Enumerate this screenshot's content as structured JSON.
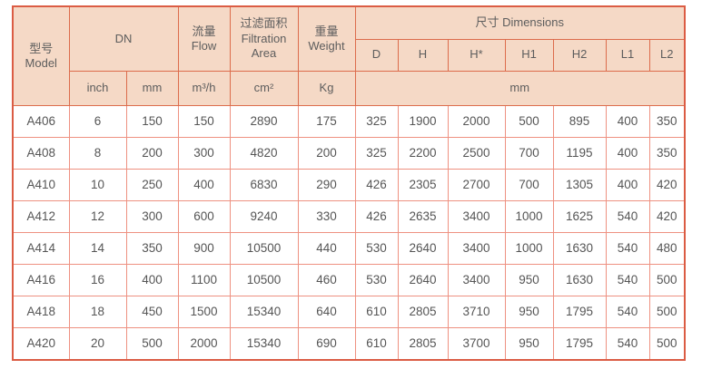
{
  "table": {
    "header": {
      "model": "型号\nModel",
      "dn": "DN",
      "flow": "流量\nFlow",
      "filtration_area": "过滤面积\nFiltration\nArea",
      "weight": "重量\nWeight",
      "dimensions": "尺寸 Dimensions"
    },
    "dimension_columns": [
      "D",
      "H",
      "H*",
      "H1",
      "H2",
      "L1",
      "L2"
    ],
    "units": [
      "inch",
      "mm",
      "m³/h",
      "cm²",
      "Kg"
    ],
    "dimensions_unit": "mm",
    "rows": [
      [
        "A406",
        "6",
        "150",
        "150",
        "2890",
        "175",
        "325",
        "1900",
        "2000",
        "500",
        "895",
        "400",
        "350"
      ],
      [
        "A408",
        "8",
        "200",
        "300",
        "4820",
        "200",
        "325",
        "2200",
        "2500",
        "700",
        "1195",
        "400",
        "350"
      ],
      [
        "A410",
        "10",
        "250",
        "400",
        "6830",
        "290",
        "426",
        "2305",
        "2700",
        "700",
        "1305",
        "400",
        "420"
      ],
      [
        "A412",
        "12",
        "300",
        "600",
        "9240",
        "330",
        "426",
        "2635",
        "3400",
        "1000",
        "1625",
        "540",
        "420"
      ],
      [
        "A414",
        "14",
        "350",
        "900",
        "10500",
        "440",
        "530",
        "2640",
        "3400",
        "1000",
        "1630",
        "540",
        "480"
      ],
      [
        "A416",
        "16",
        "400",
        "1100",
        "10500",
        "460",
        "530",
        "2640",
        "3400",
        "950",
        "1630",
        "540",
        "500"
      ],
      [
        "A418",
        "18",
        "450",
        "1500",
        "15340",
        "640",
        "610",
        "2805",
        "3710",
        "950",
        "1795",
        "540",
        "500"
      ],
      [
        "A420",
        "20",
        "500",
        "2000",
        "15340",
        "690",
        "610",
        "2805",
        "3700",
        "950",
        "1795",
        "540",
        "500"
      ]
    ],
    "colors": {
      "header_bg": "#f5d9c6",
      "header_border": "#dc6c4c",
      "data_border": "#ee9181",
      "outer_border": "#db5c44",
      "text": "#5d5d5d"
    }
  }
}
